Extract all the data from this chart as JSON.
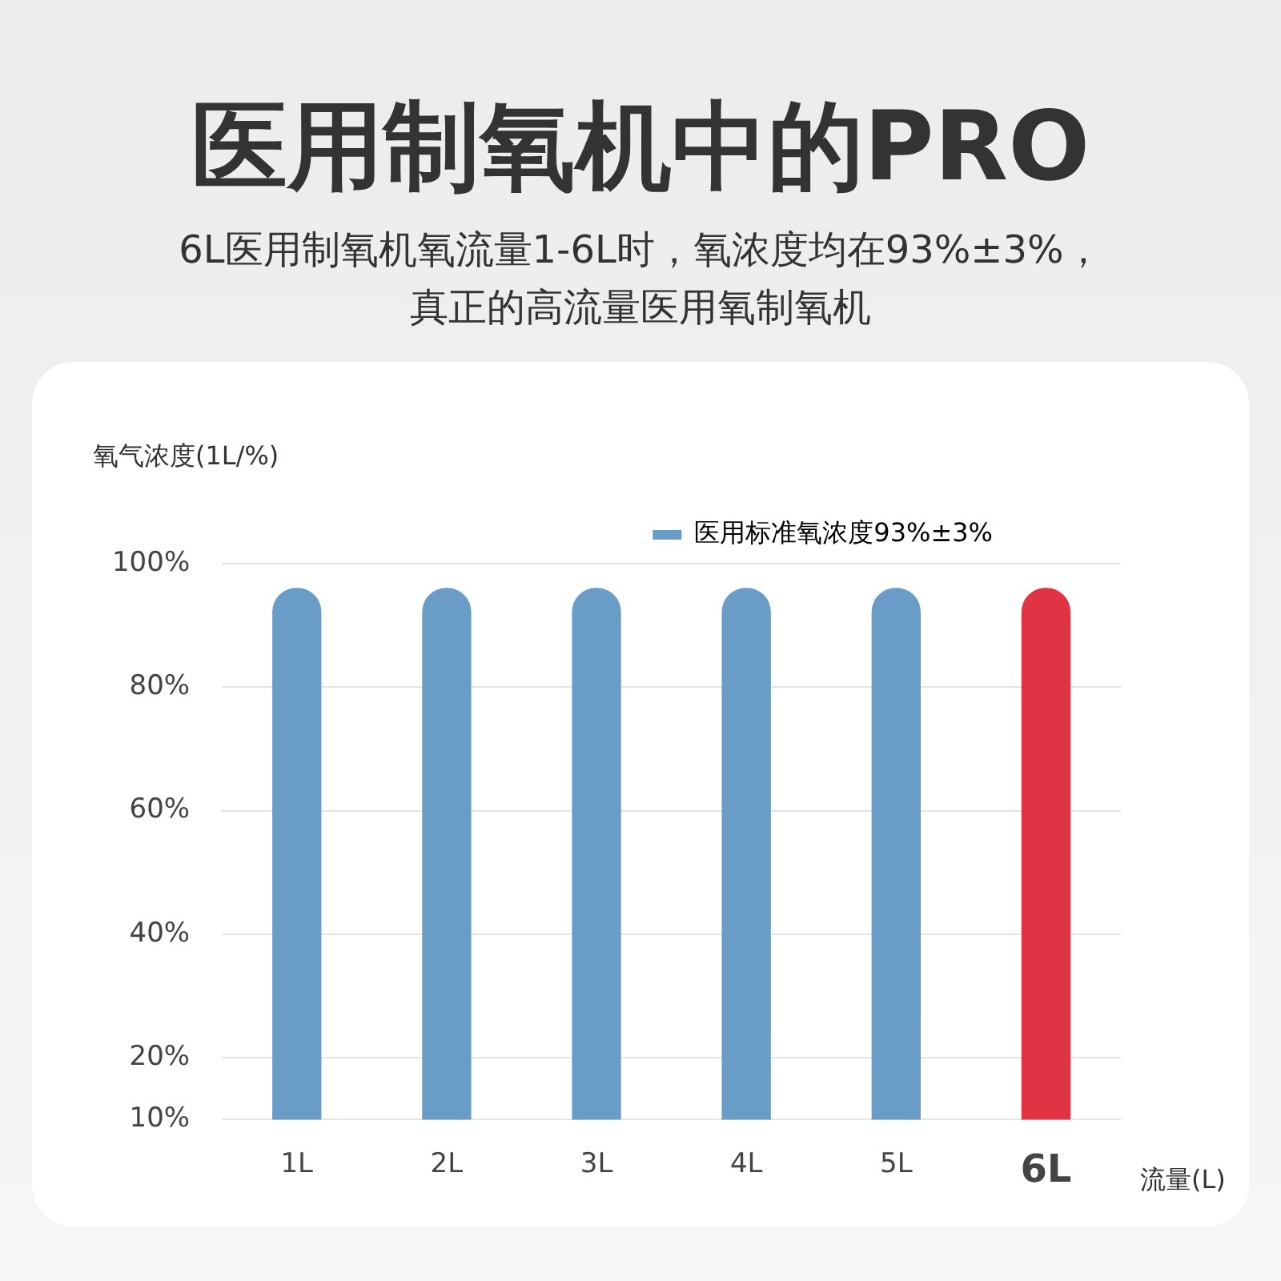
{
  "chart_data": {
    "type": "bar",
    "title": "医用制氧机中的PRO",
    "subtitle": "6L医用制氧机氧流量1-6L时，氧浓度均在93%±3%，真正的高流量医用氧制氧机",
    "ylabel": "氧气浓度(1L/%)",
    "xlabel": "流量(L)",
    "categories": [
      "1L",
      "2L",
      "3L",
      "4L",
      "5L",
      "6L"
    ],
    "series": [
      {
        "name": "医用标准氧浓度93%±3%",
        "color": "#6a9cc8",
        "colors": [
          "#6a9cc8",
          "#6a9cc8",
          "#6a9cc8",
          "#6a9cc8",
          "#6a9cc8",
          "#e03444"
        ],
        "values": [
          96,
          96,
          96,
          96,
          96,
          96
        ]
      }
    ],
    "ylim": [
      10,
      100
    ],
    "yticks": [
      {
        "value": 10,
        "label": "10%"
      },
      {
        "value": 20,
        "label": "20%"
      },
      {
        "value": 40,
        "label": "40%"
      },
      {
        "value": 60,
        "label": "60%"
      },
      {
        "value": 80,
        "label": "80%"
      },
      {
        "value": 100,
        "label": "100%"
      }
    ],
    "grid": "y",
    "legend": "top right"
  }
}
